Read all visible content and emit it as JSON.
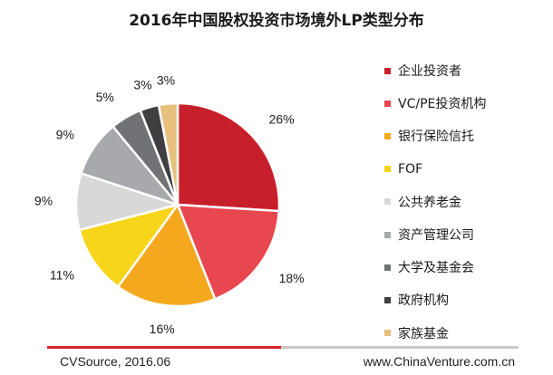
{
  "chart_data": {
    "type": "pie",
    "title": "2016年中国股权投资市场境外LP类型分布",
    "slices": [
      {
        "label": "企业投资者",
        "value": 26,
        "value_label": "26%",
        "color": "#c8202b"
      },
      {
        "label": "VC/PE投资机构",
        "value": 18,
        "value_label": "18%",
        "color": "#e8474f"
      },
      {
        "label": "银行保险信托",
        "value": 16,
        "value_label": "16%",
        "color": "#f4a81d"
      },
      {
        "label": "FOF",
        "value": 11,
        "value_label": "11%",
        "color": "#f7d51a"
      },
      {
        "label": "公共养老金",
        "value": 9,
        "value_label": "9%",
        "color": "#d8d8d8"
      },
      {
        "label": "资产管理公司",
        "value": 9,
        "value_label": "9%",
        "color": "#a8a9ad"
      },
      {
        "label": "大学及基金会",
        "value": 5,
        "value_label": "5%",
        "color": "#717276"
      },
      {
        "label": "政府机构",
        "value": 3,
        "value_label": "3%",
        "color": "#3f3f42"
      },
      {
        "label": "家族基金",
        "value": 3,
        "value_label": "3%",
        "color": "#e8c07e"
      }
    ],
    "legend_position": "right"
  },
  "footer": {
    "source": "CVSource, 2016.06",
    "website": "www.ChinaVenture.com.cn"
  }
}
